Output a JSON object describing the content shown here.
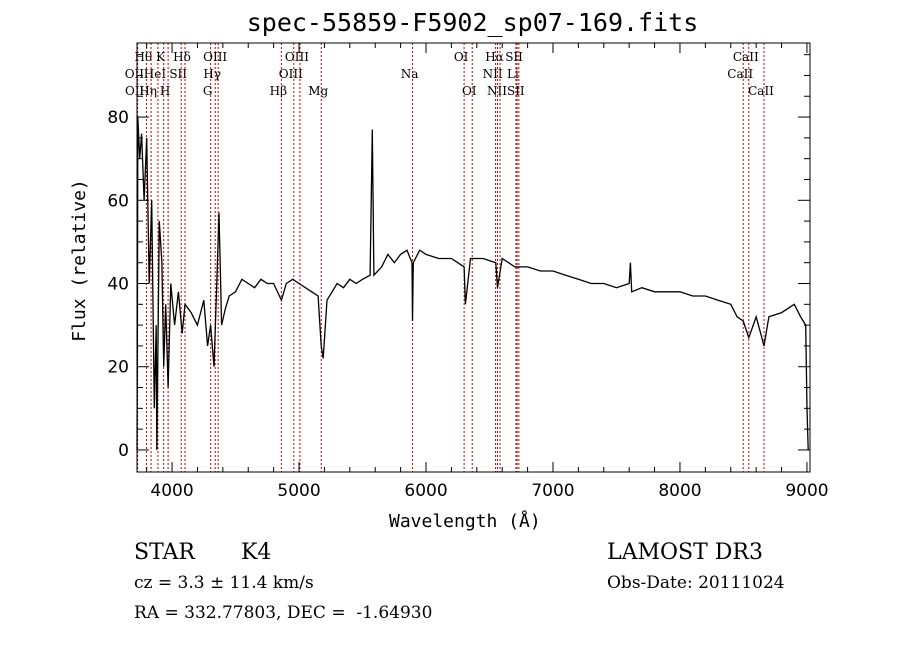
{
  "chart_data": {
    "type": "line",
    "title": "spec-55859-F5902_sp07-169.fits",
    "xlabel": "Wavelength (Å)",
    "ylabel": "Flux (relative)",
    "xlim": [
      3724,
      9024
    ],
    "ylim": [
      -5.3,
      97.8
    ],
    "xticks": [
      4000,
      5000,
      6000,
      7000,
      8000,
      9000
    ],
    "yticks": [
      0,
      20,
      40,
      60,
      80
    ],
    "grid": false,
    "series": [
      {
        "name": "spectrum",
        "points": [
          [
            3724,
            0
          ],
          [
            3726,
            20
          ],
          [
            3730,
            80
          ],
          [
            3745,
            70
          ],
          [
            3760,
            76
          ],
          [
            3780,
            60
          ],
          [
            3800,
            75
          ],
          [
            3820,
            40
          ],
          [
            3840,
            60
          ],
          [
            3860,
            10
          ],
          [
            3875,
            30
          ],
          [
            3880,
            0
          ],
          [
            3900,
            55
          ],
          [
            3920,
            45
          ],
          [
            3934,
            20
          ],
          [
            3950,
            35
          ],
          [
            3969,
            15
          ],
          [
            3990,
            40
          ],
          [
            4020,
            30
          ],
          [
            4050,
            38
          ],
          [
            4080,
            28
          ],
          [
            4102,
            35
          ],
          [
            4150,
            33
          ],
          [
            4200,
            30
          ],
          [
            4250,
            36
          ],
          [
            4280,
            25
          ],
          [
            4304,
            30
          ],
          [
            4330,
            20
          ],
          [
            4350,
            38
          ],
          [
            4370,
            57
          ],
          [
            4390,
            30
          ],
          [
            4420,
            34
          ],
          [
            4450,
            37
          ],
          [
            4500,
            38
          ],
          [
            4550,
            41
          ],
          [
            4600,
            40
          ],
          [
            4650,
            39
          ],
          [
            4700,
            41
          ],
          [
            4750,
            40
          ],
          [
            4800,
            40
          ],
          [
            4861,
            36
          ],
          [
            4900,
            40
          ],
          [
            4950,
            41
          ],
          [
            5000,
            40
          ],
          [
            5050,
            39
          ],
          [
            5100,
            38
          ],
          [
            5150,
            37
          ],
          [
            5175,
            25
          ],
          [
            5190,
            22
          ],
          [
            5220,
            36
          ],
          [
            5300,
            40
          ],
          [
            5350,
            39
          ],
          [
            5400,
            41
          ],
          [
            5450,
            40
          ],
          [
            5500,
            41
          ],
          [
            5560,
            42
          ],
          [
            5577,
            77
          ],
          [
            5590,
            42
          ],
          [
            5650,
            44
          ],
          [
            5700,
            47
          ],
          [
            5750,
            45
          ],
          [
            5800,
            47
          ],
          [
            5850,
            48
          ],
          [
            5890,
            45
          ],
          [
            5894,
            31
          ],
          [
            5900,
            45
          ],
          [
            5950,
            48
          ],
          [
            6000,
            47
          ],
          [
            6100,
            46
          ],
          [
            6200,
            46
          ],
          [
            6300,
            44
          ],
          [
            6310,
            35
          ],
          [
            6350,
            46
          ],
          [
            6450,
            46
          ],
          [
            6550,
            45
          ],
          [
            6563,
            39
          ],
          [
            6600,
            46
          ],
          [
            6700,
            44
          ],
          [
            6800,
            44
          ],
          [
            6900,
            43
          ],
          [
            7000,
            43
          ],
          [
            7100,
            42
          ],
          [
            7200,
            41
          ],
          [
            7300,
            40
          ],
          [
            7400,
            40
          ],
          [
            7500,
            39
          ],
          [
            7600,
            40
          ],
          [
            7610,
            45
          ],
          [
            7620,
            38
          ],
          [
            7700,
            39
          ],
          [
            7800,
            38
          ],
          [
            7900,
            38
          ],
          [
            8000,
            38
          ],
          [
            8100,
            37
          ],
          [
            8200,
            37
          ],
          [
            8300,
            36
          ],
          [
            8400,
            35
          ],
          [
            8450,
            32
          ],
          [
            8498,
            31
          ],
          [
            8542,
            27
          ],
          [
            8600,
            32
          ],
          [
            8662,
            25
          ],
          [
            8700,
            32
          ],
          [
            8800,
            33
          ],
          [
            8900,
            35
          ],
          [
            8950,
            32
          ],
          [
            8990,
            30
          ],
          [
            9000,
            10
          ],
          [
            9010,
            0
          ]
        ]
      }
    ],
    "lines": [
      {
        "label": "OII",
        "wave": 3727,
        "row": 1
      },
      {
        "label": "Hθ",
        "wave": 3798,
        "row": 0
      },
      {
        "label": "OII",
        "wave": 3729,
        "row": 2
      },
      {
        "label": "Hη",
        "wave": 3835,
        "row": 2
      },
      {
        "label": "HeI",
        "wave": 3889,
        "row": 1
      },
      {
        "label": "K",
        "wave": 3934,
        "row": 0
      },
      {
        "label": "H",
        "wave": 3969,
        "row": 2
      },
      {
        "label": "SII",
        "wave": 4072,
        "row": 1
      },
      {
        "label": "Hδ",
        "wave": 4102,
        "row": 0
      },
      {
        "label": "G",
        "wave": 4304,
        "row": 2
      },
      {
        "label": "Hγ",
        "wave": 4340,
        "row": 1
      },
      {
        "label": "OIII",
        "wave": 4363,
        "row": 0
      },
      {
        "label": "Hβ",
        "wave": 4861,
        "row": 2
      },
      {
        "label": "OIII",
        "wave": 4959,
        "row": 1
      },
      {
        "label": "OIII",
        "wave": 5007,
        "row": 0
      },
      {
        "label": "Mg",
        "wave": 5175,
        "row": 2
      },
      {
        "label": "Na",
        "wave": 5894,
        "row": 1
      },
      {
        "label": "OI",
        "wave": 6300,
        "row": 0
      },
      {
        "label": "OI",
        "wave": 6364,
        "row": 2
      },
      {
        "label": "NII",
        "wave": 6548,
        "row": 1
      },
      {
        "label": "Hα",
        "wave": 6563,
        "row": 0
      },
      {
        "label": "NII",
        "wave": 6583,
        "row": 2
      },
      {
        "label": "Li",
        "wave": 6708,
        "row": 1
      },
      {
        "label": "SII",
        "wave": 6717,
        "row": 0
      },
      {
        "label": "SII",
        "wave": 6731,
        "row": 2
      },
      {
        "label": "CaII",
        "wave": 8498,
        "row": 1
      },
      {
        "label": "CaII",
        "wave": 8542,
        "row": 0
      },
      {
        "label": "CaII",
        "wave": 8662,
        "row": 2
      }
    ]
  },
  "info": {
    "object": "STAR",
    "subclass": "K4",
    "survey": "LAMOST DR3",
    "cz": "cz = 3.3 ± 11.4 km/s",
    "obsdate": "Obs-Date: 20111024",
    "radec": "RA = 332.77803, DEC =  -1.64930"
  },
  "colors": {
    "line_marker": "#c00000",
    "spectrum": "#000000"
  }
}
